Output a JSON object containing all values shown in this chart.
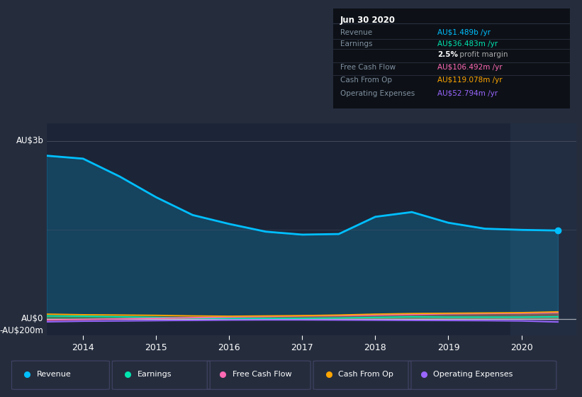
{
  "background_color": "#252d3d",
  "plot_bg_color": "#1c2537",
  "highlight_bg_color": "#222d42",
  "years": [
    2013.5,
    2014.0,
    2014.5,
    2015.0,
    2015.5,
    2016.0,
    2016.5,
    2017.0,
    2017.5,
    2018.0,
    2018.5,
    2019.0,
    2019.5,
    2020.0,
    2020.5
  ],
  "revenue": [
    2.75,
    2.7,
    2.4,
    2.05,
    1.75,
    1.6,
    1.47,
    1.42,
    1.43,
    1.72,
    1.8,
    1.62,
    1.52,
    1.5,
    1.489
  ],
  "earnings": [
    0.05,
    0.045,
    0.035,
    0.025,
    0.012,
    0.005,
    0.008,
    0.01,
    0.015,
    0.025,
    0.035,
    0.03,
    0.03,
    0.03,
    0.036
  ],
  "free_cash_flow": [
    -0.02,
    -0.01,
    0.0,
    0.01,
    0.02,
    0.03,
    0.04,
    0.05,
    0.055,
    0.065,
    0.075,
    0.085,
    0.09,
    0.095,
    0.106
  ],
  "cash_from_op": [
    0.08,
    0.07,
    0.065,
    0.06,
    0.05,
    0.045,
    0.05,
    0.055,
    0.065,
    0.08,
    0.09,
    0.095,
    0.1,
    0.105,
    0.119
  ],
  "operating_expenses": [
    -0.05,
    -0.04,
    -0.035,
    -0.03,
    -0.025,
    -0.02,
    -0.018,
    -0.018,
    -0.02,
    -0.022,
    -0.025,
    -0.028,
    -0.03,
    -0.035,
    -0.053
  ],
  "colors": {
    "revenue": "#00bfff",
    "earnings": "#00e5b0",
    "free_cash_flow": "#ff69b4",
    "cash_from_op": "#ffa500",
    "operating_expenses": "#9966ff"
  },
  "ylim": [
    -0.28,
    3.3
  ],
  "xlim": [
    2013.5,
    2020.75
  ],
  "highlight_start": 2019.85,
  "legend_items": [
    "Revenue",
    "Earnings",
    "Free Cash Flow",
    "Cash From Op",
    "Operating Expenses"
  ],
  "legend_colors": [
    "#00bfff",
    "#00e5b0",
    "#ff69b4",
    "#ffa500",
    "#9966ff"
  ],
  "info_box": {
    "title": "Jun 30 2020",
    "rows": [
      {
        "label": "Revenue",
        "value": "AU$1.489b",
        "suffix": " /yr",
        "value_color": "#00bfff"
      },
      {
        "label": "Earnings",
        "value": "AU$36.483m",
        "suffix": " /yr",
        "value_color": "#00e5b0"
      },
      {
        "label": "",
        "value": "2.5%",
        "suffix": " profit margin",
        "value_color": "#ffffff"
      },
      {
        "label": "Free Cash Flow",
        "value": "AU$106.492m",
        "suffix": " /yr",
        "value_color": "#ff69b4"
      },
      {
        "label": "Cash From Op",
        "value": "AU$119.078m",
        "suffix": " /yr",
        "value_color": "#ffa500"
      },
      {
        "label": "Operating Expenses",
        "value": "AU$52.794m",
        "suffix": " /yr",
        "value_color": "#9966ff"
      }
    ]
  }
}
